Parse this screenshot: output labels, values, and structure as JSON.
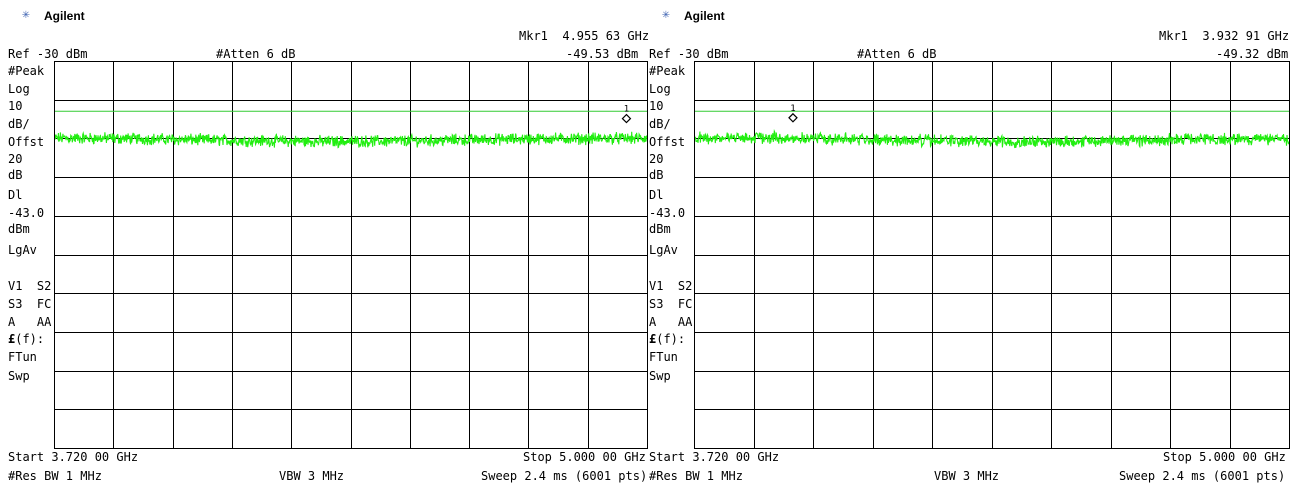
{
  "colors": {
    "trace": "#22ee11",
    "grid": "#000000",
    "display_line": "#33cc33",
    "background": "#ffffff"
  },
  "panels": [
    {
      "brand": "Agilent",
      "brand_icon": "agilent-spark-icon",
      "marker": {
        "label": "Mkr1",
        "frequency": "4.955 63 GHz",
        "level": "-49.53 dBm",
        "id": "1"
      },
      "ref_level": "Ref -30 dBm",
      "atten": "#Atten 6 dB",
      "side_labels": {
        "detector": "#Peak",
        "scale": "Log",
        "per_div": "10",
        "per_div_unit": "dB/",
        "offset": "Offst",
        "offset_val": "20",
        "offset_unit": "dB",
        "display_line": "Dl",
        "display_line_val": "-43.0",
        "display_line_unit": "dBm",
        "avg": "LgAv",
        "trace_state1": "V1  S2",
        "trace_state2": "S3  FC",
        "trace_state3": "A   AA",
        "func_prefix": "£",
        "func_suffix": "(f):",
        "func_mode": "FTun",
        "sweep_label": "Swp"
      },
      "start": "Start 3.720 00 GHz",
      "stop": "Stop 5.000 00 GHz",
      "res_bw": "#Res BW 1 MHz",
      "vbw": "VBW 3 MHz",
      "sweep": "Sweep 2.4 ms (6001 pts)"
    },
    {
      "brand": "Agilent",
      "brand_icon": "agilent-spark-icon",
      "marker": {
        "label": "Mkr1",
        "frequency": "3.932 91 GHz",
        "level": "-49.32 dBm",
        "id": "1"
      },
      "ref_level": "Ref -30 dBm",
      "atten": "#Atten 6 dB",
      "side_labels": {
        "detector": "#Peak",
        "scale": "Log",
        "per_div": "10",
        "per_div_unit": "dB/",
        "offset": "Offst",
        "offset_val": "20",
        "offset_unit": "dB",
        "display_line": "Dl",
        "display_line_val": "-43.0",
        "display_line_unit": "dBm",
        "avg": "LgAv",
        "trace_state1": "V1  S2",
        "trace_state2": "S3  FC",
        "trace_state3": "A   AA",
        "func_prefix": "£",
        "func_suffix": "(f):",
        "func_mode": "FTun",
        "sweep_label": "Swp"
      },
      "start": "Start 3.720 00 GHz",
      "stop": "Stop 5.000 00 GHz",
      "res_bw": "#Res BW 1 MHz",
      "vbw": "VBW 3 MHz",
      "sweep": "Sweep 2.4 ms (6001 pts)"
    }
  ],
  "chart_data": [
    {
      "type": "line",
      "x_range_ghz": [
        3.72,
        5.0
      ],
      "y_range_dbm": [
        -30,
        -130
      ],
      "y_scale": "log 10 dB/div",
      "grid": true,
      "display_line_dbm": -43.0,
      "marker": {
        "x_ghz": 4.95563,
        "y_dbm": -49.53
      },
      "trace_level_dbm": [
        [
          3.72,
          -49.9
        ],
        [
          3.85,
          -50.0
        ],
        [
          4.0,
          -50.3
        ],
        [
          4.15,
          -50.6
        ],
        [
          4.3,
          -50.8
        ],
        [
          4.45,
          -50.7
        ],
        [
          4.6,
          -50.4
        ],
        [
          4.75,
          -50.1
        ],
        [
          4.9,
          -50.0
        ],
        [
          5.0,
          -50.0
        ]
      ]
    },
    {
      "type": "line",
      "x_range_ghz": [
        3.72,
        5.0
      ],
      "y_range_dbm": [
        -30,
        -130
      ],
      "y_scale": "log 10 dB/div",
      "grid": true,
      "display_line_dbm": -43.0,
      "marker": {
        "x_ghz": 3.93291,
        "y_dbm": -49.32
      },
      "trace_level_dbm": [
        [
          3.72,
          -49.9
        ],
        [
          3.85,
          -49.8
        ],
        [
          4.0,
          -50.0
        ],
        [
          4.15,
          -50.4
        ],
        [
          4.3,
          -50.7
        ],
        [
          4.45,
          -50.8
        ],
        [
          4.6,
          -50.6
        ],
        [
          4.75,
          -50.3
        ],
        [
          4.9,
          -50.2
        ],
        [
          5.0,
          -50.2
        ]
      ]
    }
  ]
}
